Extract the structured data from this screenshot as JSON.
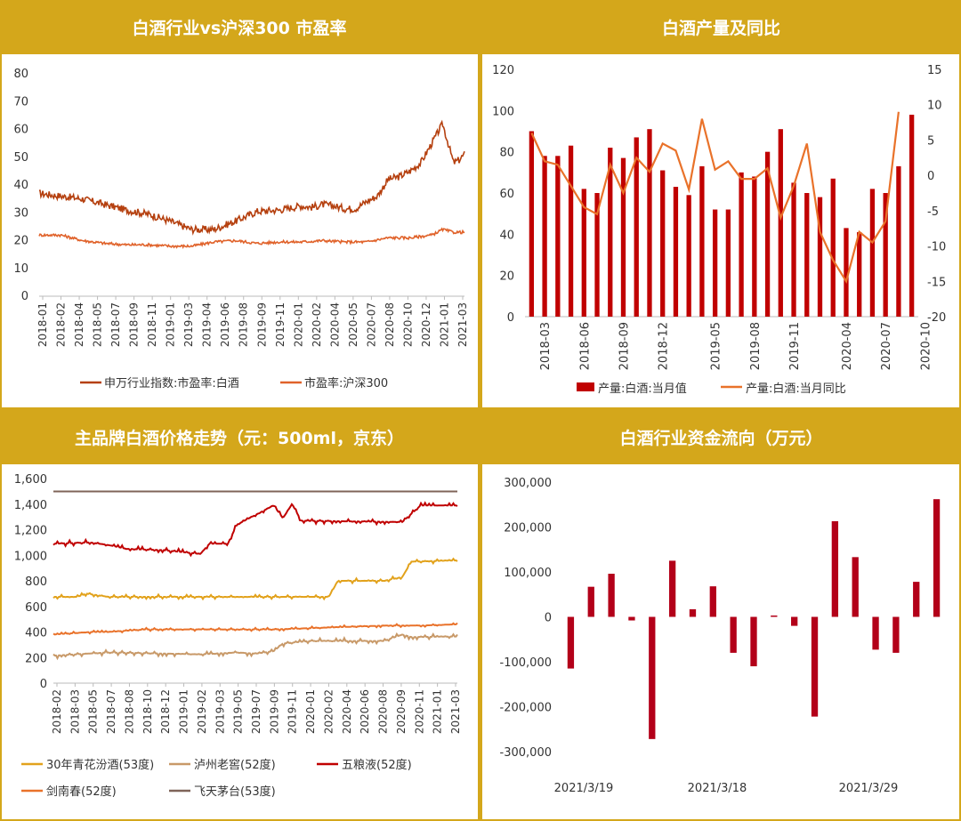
{
  "panels": {
    "pe": {
      "title": "白酒行业vs沪深300 市盈率"
    },
    "prod": {
      "title": "白酒产量及同比"
    },
    "price": {
      "title": "主品牌白酒价格走势（元：500ml，京东）"
    },
    "flow": {
      "title": "白酒行业资金流向（万元）"
    }
  },
  "colors": {
    "frame": "#d4a71b",
    "dark_red": "#c00000",
    "brown": "#8b4513",
    "orange": "#e9722a",
    "gold": "#e2a21c",
    "tan": "#c89968",
    "grey_brown": "#7f6459"
  },
  "chart_data": [
    {
      "id": "pe",
      "type": "line",
      "title": "白酒行业vs沪深300 市盈率",
      "ylim": [
        0,
        80
      ],
      "yticks": [
        0,
        10,
        20,
        30,
        40,
        50,
        60,
        70,
        80
      ],
      "xticks": [
        "2018-01",
        "2018-02",
        "2018-04",
        "2018-05",
        "2018-07",
        "2018-09",
        "2018-11",
        "2019-01",
        "2019-03",
        "2019-04",
        "2019-06",
        "2019-08",
        "2019-09",
        "2019-11",
        "2020-01",
        "2020-02",
        "2020-04",
        "2020-05",
        "2020-07",
        "2020-08",
        "2020-10",
        "2020-12",
        "2021-01",
        "2021-03"
      ],
      "series": [
        {
          "name": "申万行业指数:市盈率:白酒",
          "color": "#b5400f",
          "x": [
            0,
            2,
            4,
            6,
            8,
            10,
            12,
            14,
            16,
            18,
            20,
            22,
            24,
            25,
            26,
            27,
            28,
            29,
            30,
            31,
            32,
            33,
            34,
            35,
            36,
            37,
            38,
            38.5,
            39
          ],
          "values": [
            37,
            36,
            35,
            33,
            31,
            29.5,
            27,
            24,
            24,
            27,
            30.5,
            31,
            32.5,
            32,
            33,
            32.5,
            31.5,
            31.5,
            34,
            36,
            42,
            43,
            45,
            48,
            55,
            62,
            48,
            49,
            51
          ]
        },
        {
          "name": "市盈率:沪深300",
          "color": "#e0622a",
          "x": [
            0,
            2,
            4,
            6,
            8,
            10,
            12,
            14,
            16,
            18,
            20,
            22,
            24,
            26,
            28,
            30,
            32,
            34,
            36,
            37,
            38,
            39
          ],
          "values": [
            22,
            22,
            20,
            19,
            18.5,
            18.5,
            18,
            18,
            19.5,
            20,
            19,
            19.5,
            19.5,
            20,
            19.5,
            19.5,
            21,
            21,
            22,
            24,
            23,
            23
          ]
        }
      ]
    },
    {
      "id": "prod",
      "type": "bar",
      "title": "白酒产量及同比",
      "ylim": [
        0,
        120
      ],
      "yticks": [
        0,
        20,
        40,
        60,
        80,
        100,
        120
      ],
      "y2lim": [
        -20,
        15
      ],
      "y2ticks": [
        -20,
        -15,
        -10,
        -5,
        0,
        5,
        10,
        15
      ],
      "xticks": [
        {
          "i": 1,
          "label": "2018-03"
        },
        {
          "i": 4,
          "label": "2018-06"
        },
        {
          "i": 7,
          "label": "2018-09"
        },
        {
          "i": 10,
          "label": "2018-12"
        },
        {
          "i": 14,
          "label": "2019-05"
        },
        {
          "i": 17,
          "label": "2019-08"
        },
        {
          "i": 20,
          "label": "2019-11"
        },
        {
          "i": 24,
          "label": "2020-04"
        },
        {
          "i": 27,
          "label": "2020-07"
        },
        {
          "i": 30,
          "label": "2020-10"
        }
      ],
      "series": [
        {
          "name": "产量:白酒:当月值",
          "color": "#c00000",
          "values": [
            90,
            78,
            78,
            83,
            62,
            60,
            82,
            77,
            87,
            91,
            71,
            63,
            59,
            73,
            52,
            52,
            70,
            68,
            80,
            91,
            65,
            60,
            58,
            67,
            43,
            41,
            62,
            60,
            73,
            98
          ]
        },
        {
          "name": "产量:白酒:当月同比",
          "color": "#e9722a",
          "axis": "right",
          "values": [
            6,
            2,
            1.5,
            -1.5,
            -4.5,
            -5.5,
            1.5,
            -2.5,
            2.5,
            0.5,
            4.5,
            3.5,
            -2,
            8,
            0.8,
            2,
            -0.5,
            -0.5,
            1,
            -6,
            -1.5,
            4.5,
            -8,
            -12,
            -15,
            -8,
            -9.5,
            -6.5,
            9
          ]
        }
      ]
    },
    {
      "id": "price",
      "type": "line",
      "title": "主品牌白酒价格走势（元：500ml，京东）",
      "ylim": [
        0,
        1600
      ],
      "yticks": [
        0,
        200,
        400,
        600,
        800,
        1000,
        1200,
        1400,
        1600
      ],
      "ytick_labels": [
        "0",
        "200",
        "400",
        "600",
        "800",
        "1,000",
        "1,200",
        "1,400",
        "1,600"
      ],
      "xticks": [
        "2018-02",
        "2018-03",
        "2018-05",
        "2018-07",
        "2018-08",
        "2018-10",
        "2018-12",
        "2019-01",
        "2019-02",
        "2019-03",
        "2019-05",
        "2019-07",
        "2019-09",
        "2019-11",
        "2020-01",
        "2020-02",
        "2020-04",
        "2020-06",
        "2020-08",
        "2020-09",
        "2020-11",
        "2021-01",
        "2021-03"
      ],
      "series": [
        {
          "name": "30年青花汾酒(53度)",
          "color": "#e2a21c",
          "x": [
            0,
            1.3,
            1.8,
            3,
            12,
            15,
            15.5,
            18,
            19,
            19.5,
            22
          ],
          "values": [
            675,
            675,
            700,
            675,
            675,
            675,
            800,
            800,
            830,
            950,
            960
          ]
        },
        {
          "name": "泸州老窖(52度)",
          "color": "#c89968",
          "x": [
            0,
            3,
            8,
            10,
            11,
            12,
            12.5,
            14,
            18,
            19,
            19.5,
            22
          ],
          "values": [
            215,
            240,
            225,
            240,
            230,
            250,
            310,
            330,
            330,
            380,
            360,
            365
          ]
        },
        {
          "name": "五粮液(52度)",
          "color": "#c00000",
          "x": [
            0,
            2,
            3,
            4,
            6,
            8,
            8.5,
            9.5,
            10,
            12,
            12.5,
            13,
            13.5,
            19,
            20,
            22
          ],
          "values": [
            1090,
            1100,
            1080,
            1050,
            1040,
            1010,
            1090,
            1090,
            1240,
            1390,
            1290,
            1400,
            1270,
            1260,
            1390,
            1390
          ]
        },
        {
          "name": "剑南春(52度)",
          "color": "#e9722a",
          "x": [
            0,
            2,
            3,
            5,
            7,
            9,
            12,
            14,
            16,
            18,
            20,
            22
          ],
          "values": [
            380,
            400,
            400,
            420,
            420,
            420,
            420,
            430,
            440,
            450,
            450,
            460
          ]
        },
        {
          "name": "飞天茅台(53度)",
          "color": "#7f6459",
          "x": [
            0,
            22
          ],
          "values": [
            1499,
            1499
          ]
        }
      ]
    },
    {
      "id": "flow",
      "type": "bar",
      "title": "白酒行业资金流向（万元）",
      "ylim": [
        -300000,
        300000
      ],
      "yticks": [
        -300000,
        -200000,
        -100000,
        0,
        100000,
        200000,
        300000
      ],
      "ytick_labels": [
        "-300,000",
        "-200,000",
        "-100,000",
        "0",
        "100,000",
        "200,000",
        "300,000"
      ],
      "xticks": [
        {
          "i": 0,
          "label": "2021/3/19"
        },
        {
          "i": 6,
          "label": "2021/3/18"
        },
        {
          "i": 13,
          "label": "2021/3/29"
        }
      ],
      "series": [
        {
          "name": "资金流向",
          "color": "#b30019",
          "values": [
            -115000,
            67000,
            96000,
            -8000,
            -272000,
            125000,
            17000,
            68000,
            -80000,
            -110000,
            3000,
            -20000,
            -222000,
            213000,
            133000,
            -73000,
            -80000,
            78000,
            262000
          ]
        }
      ]
    }
  ]
}
